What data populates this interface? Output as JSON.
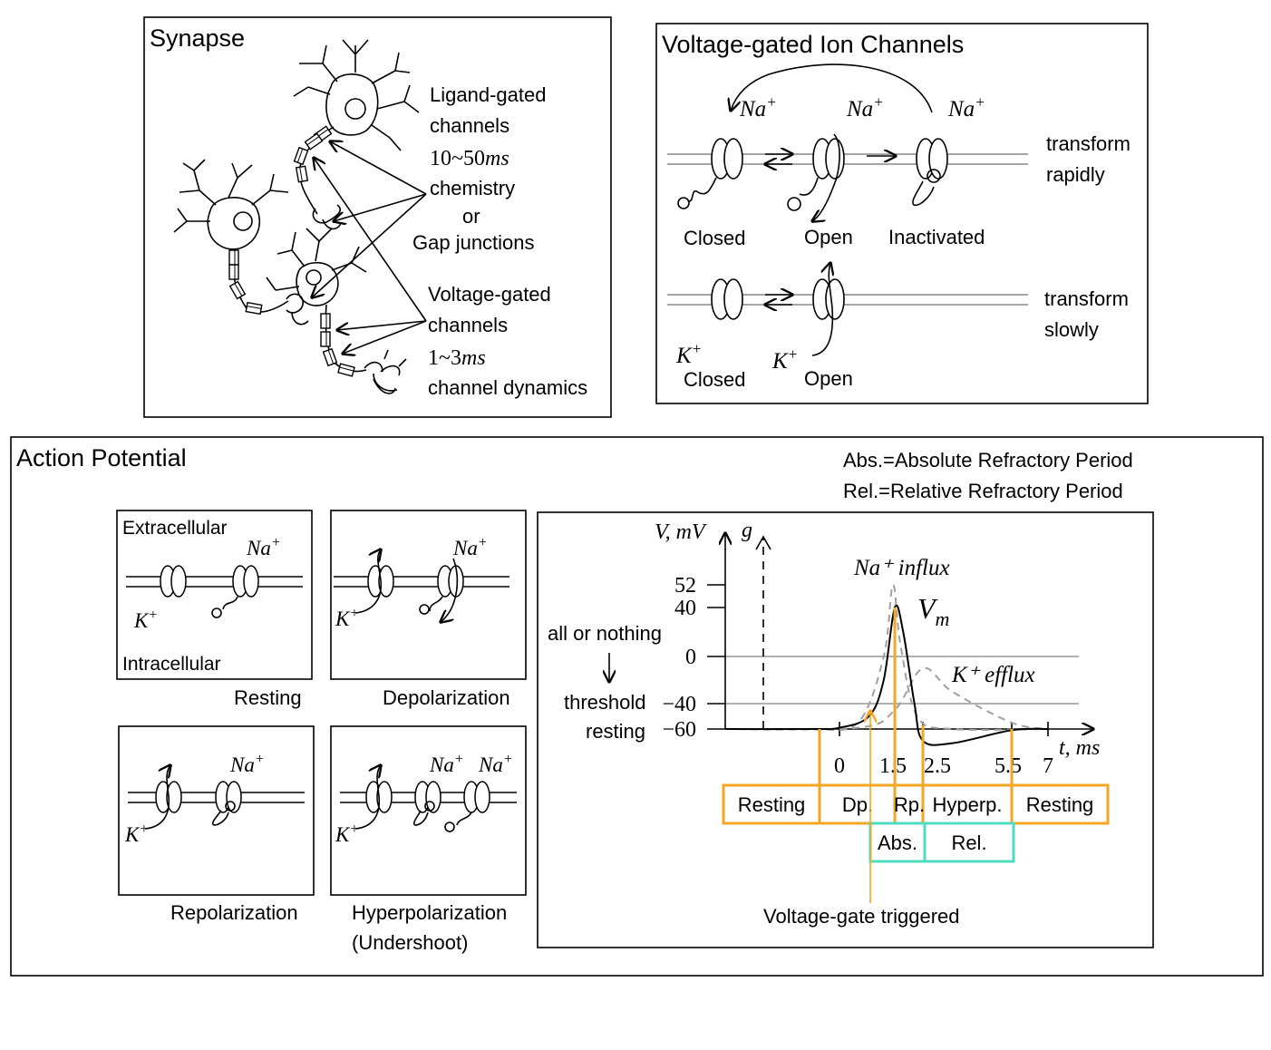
{
  "colors": {
    "orange": "#F5A623",
    "teal": "#50DCC0",
    "grey": "#999999",
    "dashed": "#A0A0A0"
  },
  "synapse": {
    "title": "Synapse",
    "ligand": {
      "line1": "Ligand-gated",
      "line2": "channels",
      "time": "10~50",
      "unit": "ms",
      "line3": "chemistry",
      "line4": "or",
      "line5": "Gap junctions"
    },
    "voltage": {
      "line1": "Voltage-gated",
      "line2": "channels",
      "time": "1~3",
      "unit": "ms",
      "line3": "channel dynamics"
    }
  },
  "vgic": {
    "title": "Voltage-gated Ion Channels",
    "na": "Na",
    "k": "K",
    "plus": "+",
    "closed": "Closed",
    "open": "Open",
    "inactivated": "Inactivated",
    "rapid1": "transform",
    "rapid2": "rapidly",
    "slow1": "transform",
    "slow2": "slowly"
  },
  "ap": {
    "title": "Action Potential",
    "abs_def": "Abs.=Absolute Refractory Period",
    "rel_def": "Rel.=Relative Refractory Period",
    "extracellular": "Extracellular",
    "intracellular": "Intracellular",
    "state_resting": "Resting",
    "state_depol": "Depolarization",
    "state_repol": "Repolarization",
    "state_hyper": "Hyperpolarization",
    "state_hyper2": "(Undershoot)",
    "all_or_nothing": "all or nothing",
    "threshold": "threshold",
    "resting": "resting",
    "v_axis": "V, mV",
    "g_axis": "g",
    "t_axis": "t, ms",
    "na_influx": "Na⁺ influx",
    "k_efflux": "K⁺ efflux",
    "vm": "V",
    "vm_sub": "m",
    "trigger": "Voltage-gate triggered",
    "phases": [
      "Resting",
      "Dp.",
      "Rp.",
      "Hyperp.",
      "Resting"
    ],
    "refractory": [
      "Abs.",
      "Rel."
    ]
  },
  "chart_data": {
    "type": "line",
    "title": "",
    "xlabel": "t, ms",
    "ylabel": "V, mV",
    "x_ticks": [
      "0",
      "1.5",
      "2.5",
      "5.5",
      "7"
    ],
    "y_ticks": [
      "52",
      "40",
      "0",
      "−40",
      "−60"
    ],
    "series": [
      {
        "name": "V_m",
        "points": [
          [
            -4,
            -60
          ],
          [
            -1,
            -60
          ],
          [
            0,
            -59
          ],
          [
            0.8,
            -50
          ],
          [
            1.2,
            -20
          ],
          [
            1.5,
            40
          ],
          [
            1.8,
            20
          ],
          [
            2.2,
            -40
          ],
          [
            2.5,
            -70
          ],
          [
            3.5,
            -72
          ],
          [
            5.5,
            -61
          ],
          [
            7,
            -60
          ]
        ]
      },
      {
        "name": "Na⁺ influx",
        "points": [
          [
            -4,
            -60
          ],
          [
            -1,
            -60
          ],
          [
            0.5,
            -55
          ],
          [
            1.2,
            0
          ],
          [
            1.45,
            52
          ],
          [
            1.7,
            10
          ],
          [
            2.3,
            -50
          ],
          [
            3.5,
            -60
          ],
          [
            7,
            -60
          ]
        ]
      },
      {
        "name": "K⁺ efflux",
        "points": [
          [
            -4,
            -60
          ],
          [
            0.5,
            -59
          ],
          [
            1.5,
            -45
          ],
          [
            2.5,
            -10
          ],
          [
            3.5,
            -30
          ],
          [
            5.5,
            -55
          ],
          [
            7,
            -60
          ]
        ]
      }
    ]
  }
}
